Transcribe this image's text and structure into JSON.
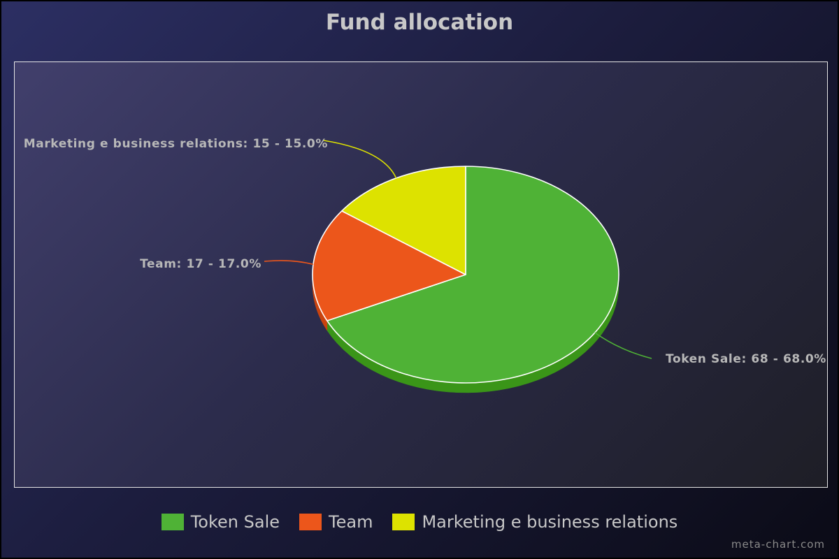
{
  "chart_data": {
    "type": "pie",
    "title": "Fund allocation",
    "categories": [
      "Token Sale",
      "Team",
      "Marketing e business relations"
    ],
    "values": [
      68,
      17,
      15
    ],
    "percentages": [
      "68.0%",
      "17.0%",
      "15.0%"
    ],
    "slice_labels": [
      "Token Sale: 68 - 68.0%",
      "Team: 17 - 17.0%",
      "Marketing e business relations: 15 - 15.0%"
    ],
    "colors": [
      "#4fb236",
      "#ec561b",
      "#dde200"
    ],
    "side_colors": [
      "#3a9518",
      "#c9430f",
      "#b8bc00"
    ],
    "legend_position": "bottom",
    "three_d": true
  },
  "credit": "meta-chart.com"
}
